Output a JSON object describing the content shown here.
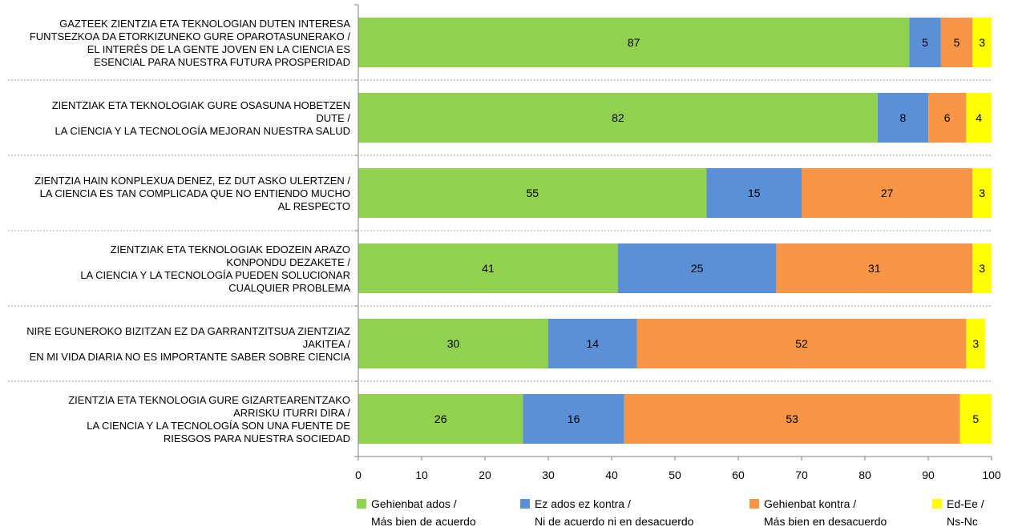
{
  "chart_data": {
    "type": "bar",
    "orientation": "horizontal",
    "stacked": true,
    "title": "",
    "xlabel": "",
    "ylabel": "",
    "xlim": [
      0,
      100
    ],
    "x_ticks": [
      "0",
      "10",
      "20",
      "30",
      "40",
      "50",
      "60",
      "70",
      "80",
      "90",
      "100"
    ],
    "grid": false,
    "legend_position": "bottom",
    "categories": [
      [
        "GAZTEEK ZIENTZIA ETA TEKNOLOGIAN DUTEN INTERESA",
        "FUNTSEZKOA DA ETORKIZUNEKO GURE OPAROTASUNERAKO /",
        "EL INTERÉS DE LA GENTE JOVEN EN LA CIENCIA ES",
        "ESENCIAL PARA NUESTRA FUTURA PROSPERIDAD"
      ],
      [
        "ZIENTZIAK ETA TEKNOLOGIAK GURE OSASUNA HOBETZEN",
        "DUTE /",
        "LA CIENCIA Y LA TECNOLOGÍA MEJORAN NUESTRA SALUD"
      ],
      [
        "ZIENTZIA HAIN KONPLEXUA DENEZ, EZ DUT ASKO ULERTZEN /",
        "LA CIENCIA ES TAN COMPLICADA QUE NO ENTIENDO MUCHO",
        "AL RESPECTO"
      ],
      [
        "ZIENTZIAK ETA TEKNOLOGIAK EDOZEIN ARAZO",
        "KONPONDU DEZAKETE /",
        "LA CIENCIA Y LA TECNOLOGÍA PUEDEN SOLUCIONAR",
        "CUALQUIER PROBLEMA"
      ],
      [
        "NIRE EGUNEROKO BIZITZAN EZ DA GARRANTZITSUA ZIENTZIAZ",
        "JAKITEA /",
        "EN MI VIDA DIARIA NO ES IMPORTANTE SABER SOBRE CIENCIA"
      ],
      [
        "ZIENTZIA ETA TEKNOLOGIA GURE GIZARTEARENTZAKO",
        "ARRISKU ITURRI DIRA /",
        "LA CIENCIA Y LA TECNOLOGÍA SON UNA FUENTE DE",
        "RIESGOS PARA NUESTRA SOCIEDAD"
      ]
    ],
    "series": [
      {
        "name": [
          "Gehienbat ados /",
          "Más bien de acuerdo"
        ],
        "color": "#92d050",
        "values": [
          87,
          82,
          55,
          41,
          30,
          26
        ]
      },
      {
        "name": [
          "Ez ados ez kontra /",
          "Ni de acuerdo ni en desacuerdo"
        ],
        "color": "#5b8fd6",
        "values": [
          5,
          8,
          15,
          25,
          14,
          16
        ]
      },
      {
        "name": [
          "Gehienbat kontra /",
          "Más bien en desacuerdo"
        ],
        "color": "#f79646",
        "values": [
          5,
          6,
          27,
          31,
          52,
          53
        ]
      },
      {
        "name": [
          "Ed-Ee /",
          "Ns-Nc"
        ],
        "color": "#ffff00",
        "values": [
          3,
          4,
          3,
          3,
          3,
          5
        ]
      }
    ]
  }
}
